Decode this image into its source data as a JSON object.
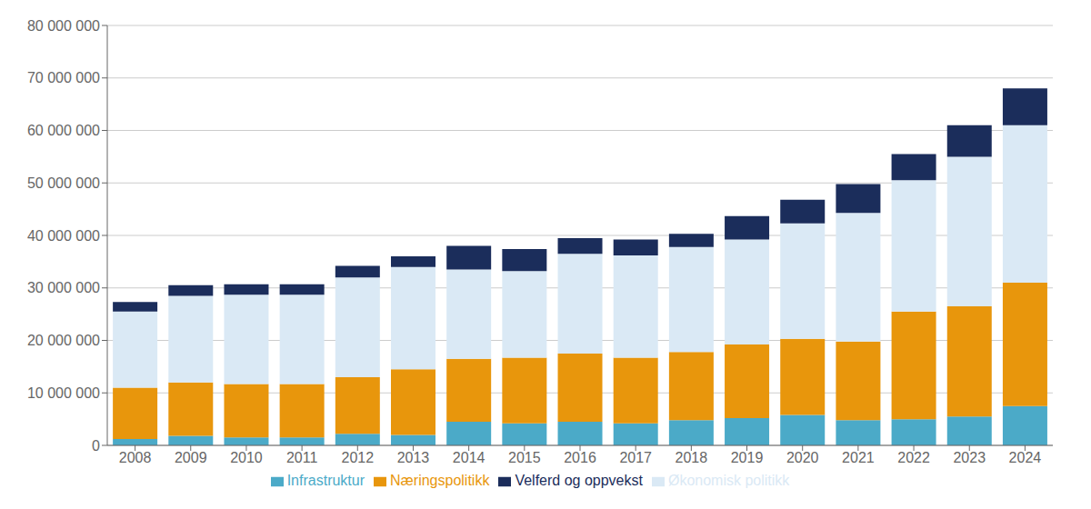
{
  "chart_data": {
    "type": "bar",
    "categories": [
      "2008",
      "2009",
      "2010",
      "2011",
      "2012",
      "2013",
      "2014",
      "2015",
      "2016",
      "2017",
      "2018",
      "2019",
      "2020",
      "2021",
      "2022",
      "2023",
      "2024"
    ],
    "series": [
      {
        "name": "Infrastruktur",
        "color": "#4BAAC8",
        "values": [
          1200000,
          1800000,
          1500000,
          1500000,
          2200000,
          2000000,
          4500000,
          4200000,
          4500000,
          4200000,
          4800000,
          5200000,
          5800000,
          4800000,
          5000000,
          5500000,
          7500000
        ]
      },
      {
        "name": "Næringspolitikk",
        "color": "#E8960C",
        "values": [
          9800000,
          10200000,
          10200000,
          10200000,
          10800000,
          12500000,
          12000000,
          12500000,
          13000000,
          12500000,
          13000000,
          14000000,
          14500000,
          15000000,
          20500000,
          21000000,
          23500000
        ]
      },
      {
        "name": "Økonomisk politikk",
        "color": "#DAE9F5",
        "values": [
          14500000,
          16500000,
          17000000,
          17000000,
          19000000,
          19500000,
          17000000,
          16500000,
          19000000,
          19500000,
          20000000,
          20000000,
          22000000,
          24500000,
          25000000,
          28500000,
          30000000
        ]
      },
      {
        "name": "Velferd og oppvekst",
        "color": "#1B2D5B",
        "values": [
          1800000,
          2000000,
          2000000,
          2000000,
          2200000,
          2000000,
          4500000,
          4200000,
          3000000,
          3000000,
          2500000,
          4500000,
          4500000,
          5500000,
          5000000,
          6000000,
          7000000
        ]
      }
    ],
    "ylim": [
      0,
      80000000
    ],
    "yticks": [
      0,
      {
        "value": 10000000,
        "label": "10 000 000"
      },
      {
        "value": 20000000,
        "label": "20 000 000"
      },
      {
        "value": 30000000,
        "label": "30 000 000"
      },
      {
        "value": 40000000,
        "label": "40 000 000"
      },
      {
        "value": 50000000,
        "label": "50 000 000"
      },
      {
        "value": 60000000,
        "label": "60 000 000"
      },
      {
        "value": 70000000,
        "label": "70 000 000"
      },
      {
        "value": 80000000,
        "label": "80 000 000"
      }
    ],
    "stacked": true,
    "grid": true,
    "legend": "bottom"
  }
}
